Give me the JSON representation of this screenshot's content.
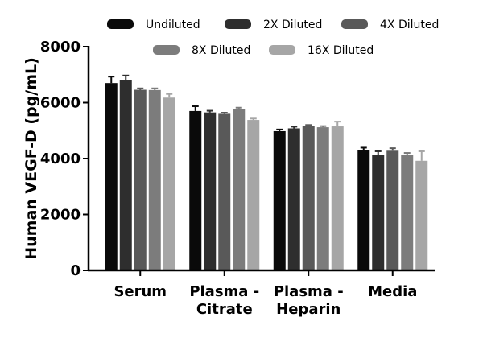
{
  "chart_data": {
    "type": "bar",
    "ylabel": "Human VEGF-D (pg/mL)",
    "xlabel": "",
    "ylim": [
      0,
      8000
    ],
    "yticks": [
      0,
      2000,
      4000,
      6000,
      8000
    ],
    "legend_position": "top",
    "grid": false,
    "error_bars": true,
    "categories": [
      {
        "label": [
          "Serum"
        ]
      },
      {
        "label": [
          "Plasma -",
          "Citrate"
        ]
      },
      {
        "label": [
          "Plasma -",
          "Heparin"
        ]
      },
      {
        "label": [
          "Media"
        ]
      }
    ],
    "series": [
      {
        "name": "Undiluted",
        "color": "#0a0a0a",
        "values": [
          6700,
          5700,
          4980,
          4300
        ],
        "errors": [
          230,
          170,
          60,
          90
        ]
      },
      {
        "name": "2X Diluted",
        "color": "#2e2e2e",
        "values": [
          6800,
          5650,
          5080,
          4130
        ],
        "errors": [
          170,
          60,
          60,
          130
        ]
      },
      {
        "name": "4X Diluted",
        "color": "#595959",
        "values": [
          6460,
          5600,
          5160,
          4280
        ],
        "errors": [
          50,
          40,
          40,
          90
        ]
      },
      {
        "name": "8X Diluted",
        "color": "#7c7c7c",
        "values": [
          6450,
          5770,
          5120,
          4120
        ],
        "errors": [
          60,
          50,
          40,
          80
        ]
      },
      {
        "name": "16X Diluted",
        "color": "#a6a6a6",
        "values": [
          6180,
          5380,
          5150,
          3920
        ],
        "errors": [
          130,
          50,
          170,
          340
        ]
      }
    ]
  }
}
